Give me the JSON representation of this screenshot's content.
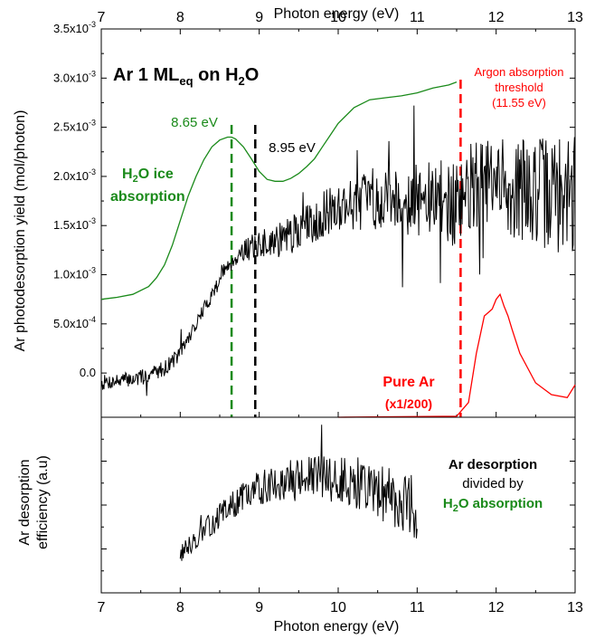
{
  "chart_data": [
    {
      "type": "line",
      "title": "Ar 1 ML",
      "title_sub": "eq",
      "title_tail": " on H",
      "title_sub2": "2",
      "title_end": "O",
      "xlabel_top": "Photon energy (eV)",
      "ylabel": "Ar photodesorption yield (mol/photon)",
      "xlim": [
        7,
        13
      ],
      "ylim": [
        -0.00045,
        0.0035
      ],
      "x_ticks": [
        "7",
        "8",
        "9",
        "10",
        "11",
        "12",
        "13"
      ],
      "y_ticks": [
        {
          "v": 0.0,
          "mant": "0.0",
          "exp": ""
        },
        {
          "v": 0.0005,
          "mant": "5.0x10",
          "exp": "-4"
        },
        {
          "v": 0.001,
          "mant": "1.0x10",
          "exp": "-3"
        },
        {
          "v": 0.0015,
          "mant": "1.5x10",
          "exp": "-3"
        },
        {
          "v": 0.002,
          "mant": "2.0x10",
          "exp": "-3"
        },
        {
          "v": 0.0025,
          "mant": "2.5x10",
          "exp": "-3"
        },
        {
          "v": 0.003,
          "mant": "3.0x10",
          "exp": "-3"
        },
        {
          "v": 0.0035,
          "mant": "3.5x10",
          "exp": "-3"
        }
      ],
      "vlines": [
        {
          "x": 8.65,
          "color": "#1a8a1a"
        },
        {
          "x": 8.95,
          "color": "#000000"
        },
        {
          "x": 11.55,
          "color": "#ff0000"
        }
      ],
      "annotations": {
        "green_peak": "8.65 eV",
        "black_peak": "8.95 eV",
        "argon_thr_1": "Argon absorption",
        "argon_thr_2": "threshold",
        "argon_thr_3": "(11.55 eV)",
        "h2o_1a": "H",
        "h2o_1b": "2",
        "h2o_1c": "O ice",
        "h2o_2": "absorption",
        "pure_ar": "Pure Ar",
        "pure_ar_scale": "(x1/200)"
      },
      "series": [
        {
          "color": "#1a8a1a",
          "x": [
            7.0,
            7.2,
            7.4,
            7.6,
            7.7,
            7.8,
            7.9,
            8.0,
            8.1,
            8.2,
            8.3,
            8.4,
            8.5,
            8.6,
            8.65,
            8.7,
            8.8,
            8.9,
            9.0,
            9.1,
            9.2,
            9.3,
            9.4,
            9.5,
            9.6,
            9.7,
            9.8,
            9.9,
            10.0,
            10.2,
            10.4,
            10.6,
            10.8,
            11.0,
            11.2,
            11.4,
            11.5
          ],
          "y": [
            0.00075,
            0.00077,
            0.0008,
            0.00088,
            0.00097,
            0.0011,
            0.0013,
            0.00155,
            0.0018,
            0.002,
            0.00217,
            0.0023,
            0.00237,
            0.0024,
            0.0024,
            0.00238,
            0.0023,
            0.00218,
            0.00205,
            0.00197,
            0.00195,
            0.00195,
            0.00198,
            0.00203,
            0.0021,
            0.00218,
            0.0023,
            0.00242,
            0.00254,
            0.0027,
            0.00278,
            0.0028,
            0.00282,
            0.00285,
            0.0029,
            0.00293,
            0.00296
          ]
        },
        {
          "color": "#000000",
          "noise_seed": 7,
          "x": [
            7.0,
            7.5,
            7.8,
            8.0,
            8.2,
            8.4,
            8.6,
            8.8,
            9.0,
            9.2,
            9.4,
            9.6,
            9.8,
            10.0,
            10.3,
            10.6,
            11.0,
            11.3,
            11.5,
            11.7,
            12.0,
            12.5,
            13.0
          ],
          "y": [
            -0.0001,
            -5e-05,
            5e-05,
            0.0002,
            0.0005,
            0.0008,
            0.0011,
            0.00125,
            0.0013,
            0.00135,
            0.0014,
            0.0015,
            0.0016,
            0.0017,
            0.00175,
            0.0018,
            0.00175,
            0.00175,
            0.0017,
            0.0019,
            0.0019,
            0.00185,
            0.0018
          ]
        },
        {
          "color": "#ff0000",
          "x": [
            10.0,
            11.5,
            11.65,
            11.75,
            11.85,
            11.95,
            12.0,
            12.05,
            12.1,
            12.15,
            12.2,
            12.3,
            12.5,
            12.7,
            12.9,
            13.0
          ],
          "y": [
            -0.00045,
            -0.00044,
            -0.0003,
            0.0002,
            0.00058,
            0.00065,
            0.00075,
            0.0008,
            0.00068,
            0.00058,
            0.00045,
            0.0002,
            -0.0001,
            -0.00022,
            -0.00025,
            -0.00012
          ]
        }
      ]
    },
    {
      "type": "line",
      "xlabel": "Photon energy (eV)",
      "ylabel_1": "Ar desorption",
      "ylabel_2": "efficiency (a.u)",
      "xlim": [
        7,
        13
      ],
      "ylim": [
        0,
        1
      ],
      "x_ticks": [
        "7",
        "8",
        "9",
        "10",
        "11",
        "12",
        "13"
      ],
      "legend_1": "Ar desorption",
      "legend_2": "divided by",
      "legend_3a": "H",
      "legend_3b": "2",
      "legend_3c": "O absorption",
      "series": [
        {
          "color": "#000000",
          "noise_seed": 13,
          "x": [
            8.0,
            8.3,
            8.6,
            8.9,
            9.2,
            9.5,
            9.8,
            10.1,
            10.4,
            10.7,
            11.0
          ],
          "y": [
            0.22,
            0.35,
            0.48,
            0.58,
            0.63,
            0.65,
            0.66,
            0.64,
            0.6,
            0.55,
            0.48
          ]
        }
      ]
    }
  ]
}
